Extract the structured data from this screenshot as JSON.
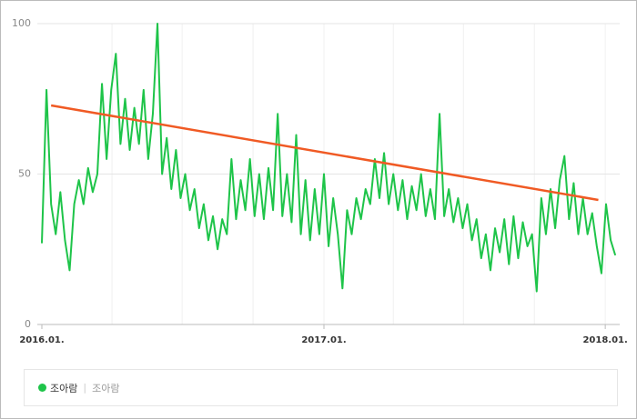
{
  "chart_data": {
    "type": "line",
    "x": [
      0,
      6,
      12,
      18,
      24,
      30,
      36,
      42,
      48,
      54,
      60,
      66,
      72,
      78,
      84,
      90,
      96,
      102,
      108,
      114,
      120,
      126,
      132,
      138,
      144,
      150,
      156,
      162,
      168,
      174,
      180,
      186,
      192,
      198,
      204,
      210,
      216,
      222,
      228,
      234,
      240,
      246,
      252,
      258,
      264,
      270,
      276,
      282,
      288,
      294,
      300,
      306,
      312,
      318,
      324,
      330,
      336,
      342,
      348,
      354,
      360,
      366,
      372,
      378,
      384,
      390,
      396,
      402,
      408,
      414,
      420,
      426,
      432,
      438,
      444,
      450,
      456,
      462,
      468,
      474,
      480,
      486,
      492,
      498,
      504,
      510,
      516,
      522,
      528,
      534,
      540,
      546,
      552,
      558,
      564,
      570,
      576,
      582,
      588,
      594,
      600,
      606,
      612,
      618,
      624,
      630,
      636,
      642,
      648,
      654,
      660,
      666,
      672,
      678,
      684,
      690,
      696,
      702,
      708,
      714,
      720,
      726,
      732,
      738,
      744
    ],
    "series": [
      {
        "name": "조아람",
        "color": "#1ec449",
        "values": [
          27,
          78,
          40,
          30,
          44,
          28,
          18,
          40,
          48,
          40,
          52,
          44,
          50,
          80,
          55,
          78,
          90,
          60,
          75,
          58,
          72,
          60,
          78,
          55,
          70,
          100,
          50,
          62,
          45,
          58,
          42,
          50,
          38,
          45,
          32,
          40,
          28,
          36,
          25,
          35,
          30,
          55,
          35,
          48,
          38,
          55,
          36,
          50,
          35,
          52,
          38,
          70,
          36,
          50,
          34,
          63,
          30,
          48,
          28,
          45,
          30,
          50,
          26,
          42,
          30,
          12,
          38,
          30,
          42,
          35,
          45,
          40,
          55,
          42,
          57,
          40,
          50,
          38,
          48,
          35,
          46,
          38,
          50,
          36,
          45,
          35,
          70,
          36,
          45,
          34,
          42,
          32,
          40,
          28,
          35,
          22,
          30,
          18,
          32,
          24,
          35,
          20,
          36,
          22,
          34,
          26,
          30,
          11,
          42,
          30,
          45,
          32,
          48,
          56,
          35,
          47,
          30,
          42,
          30,
          37,
          26,
          17,
          40,
          28,
          23
        ]
      }
    ],
    "trend": {
      "x": [
        12,
        722
      ],
      "values": [
        72.8,
        41.4
      ],
      "color": "#f05a24"
    },
    "legend_keywords": "조아람",
    "xlim": [
      0,
      745
    ],
    "ylim": [
      0,
      100
    ],
    "yticks": [
      0,
      50,
      100
    ],
    "xticks": [
      {
        "value": 0,
        "label": "2016.01."
      },
      {
        "value": 366,
        "label": "2017.01."
      },
      {
        "value": 731,
        "label": "2018.01."
      }
    ],
    "xgrid": [
      91,
      182,
      274,
      366,
      456,
      547,
      639,
      731
    ]
  }
}
